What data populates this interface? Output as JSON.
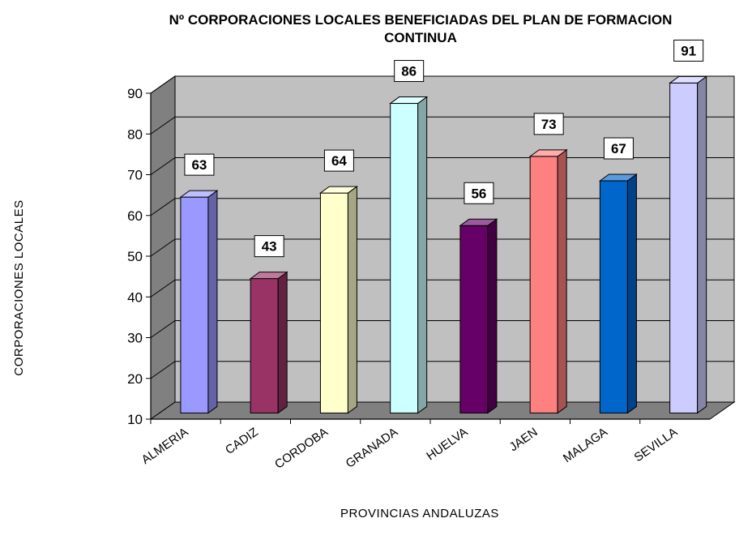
{
  "chart_data": {
    "type": "bar",
    "title_line1": "Nº CORPORACIONES  LOCALES  BENEFICIADAS  DEL  PLAN  DE  FORMACION",
    "title_line2": "CONTINUA",
    "xlabel": "PROVINCIAS ANDALUZAS",
    "ylabel": "CORPORACIONES  LOCALES",
    "categories": [
      "ALMERIA",
      "CADIZ",
      "CORDOBA",
      "GRANADA",
      "HUELVA",
      "JAEN",
      "MALAGA",
      "SEVILLA"
    ],
    "values": [
      63,
      43,
      64,
      86,
      56,
      73,
      67,
      91
    ],
    "colors": [
      "#9999ff",
      "#993366",
      "#ffffcc",
      "#ccffff",
      "#660066",
      "#ff8080",
      "#0066cc",
      "#ccccff"
    ],
    "ylim": [
      10,
      90
    ],
    "yticks": [
      10,
      20,
      30,
      40,
      50,
      60,
      70,
      80,
      90
    ],
    "grid": true,
    "style": "3d-column",
    "wall_color": "#c0c0c0",
    "floor_color": "#808080"
  }
}
